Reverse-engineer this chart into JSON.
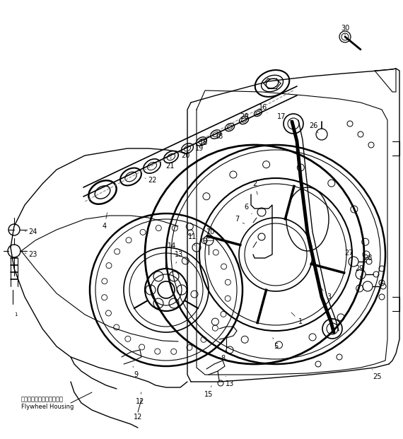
{
  "bg_color": "#ffffff",
  "line_color": "#000000",
  "text_color": "#000000",
  "figsize": [
    5.7,
    6.21
  ],
  "dpi": 100,
  "annotation_text_jp": "フライホイールハウジング",
  "annotation_text_en": "Flywheel Housing"
}
